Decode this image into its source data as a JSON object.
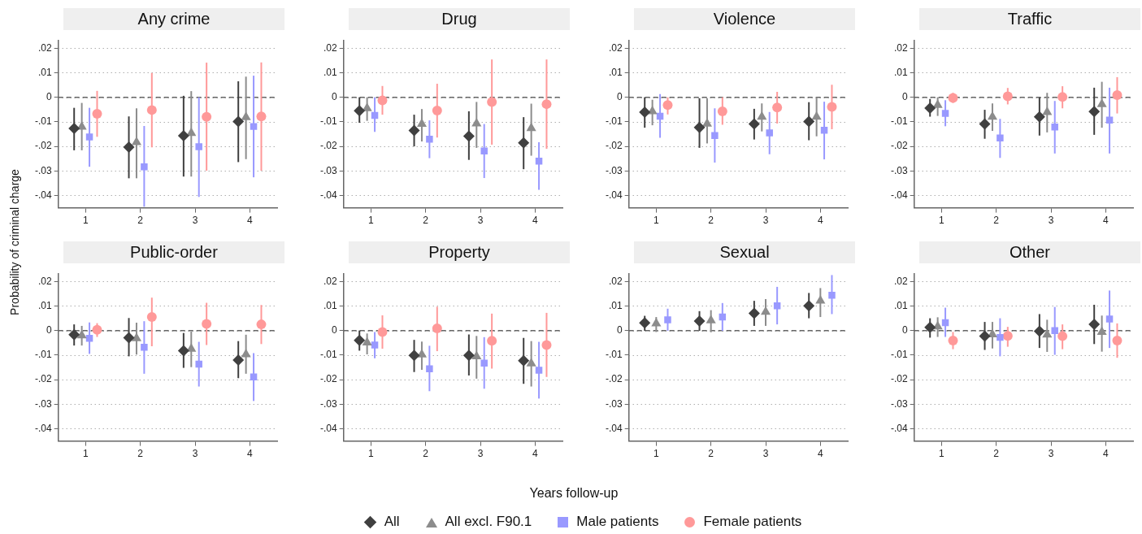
{
  "chart_data": [
    {
      "type": "scatter",
      "title": "Any crime",
      "ylabel": "Probability of criminal charge",
      "legend": "bottom",
      "categories": [
        "1",
        "2",
        "3",
        "4"
      ],
      "ylim": [
        -0.045,
        0.023
      ],
      "yticks": [
        {
          "value": 0.02,
          "label": ".02"
        },
        {
          "value": 0.01,
          "label": ".01"
        },
        {
          "value": 0,
          "label": "0"
        },
        {
          "value": -0.01,
          "label": "-.01"
        },
        {
          "value": -0.02,
          "label": "-.02"
        },
        {
          "value": -0.03,
          "label": "-.03"
        },
        {
          "value": -0.04,
          "label": "-.04"
        }
      ],
      "grid": "y",
      "ref_lines": [
        {
          "axis": "y",
          "value": 0,
          "line_style": "dashed",
          "color": "#666666"
        }
      ],
      "series": [
        {
          "name": "All",
          "color": "#404040",
          "marker": "diamond",
          "values": [
            -0.0127,
            -0.0203,
            -0.0157,
            -0.0099
          ],
          "errors": [
            [
              -0.0216,
              -0.0043
            ],
            [
              -0.033,
              -0.0078
            ],
            [
              -0.0323,
              0.0006
            ],
            [
              -0.0264,
              0.0065
            ]
          ]
        },
        {
          "name": "All excl. F90.1",
          "color": "#8c8c8c",
          "marker": "triangle",
          "values": [
            -0.012,
            -0.0183,
            -0.0146,
            -0.0081
          ],
          "errors": [
            [
              -0.0216,
              -0.0023
            ],
            [
              -0.033,
              -0.0045
            ],
            [
              -0.0323,
              0.0025
            ],
            [
              -0.0252,
              0.0084
            ]
          ]
        },
        {
          "name": "Male patients",
          "color": "#9999ff",
          "marker": "square",
          "values": [
            -0.0162,
            -0.0283,
            -0.0201,
            -0.0119
          ],
          "errors": [
            [
              -0.0283,
              -0.0043
            ],
            [
              -0.0446,
              -0.0117
            ],
            [
              -0.0406,
              0
            ],
            [
              -0.0326,
              0.0088
            ]
          ]
        },
        {
          "name": "Female patients",
          "color": "#ff9999",
          "marker": "circle",
          "values": [
            -0.0067,
            -0.0052,
            -0.008,
            -0.0078
          ],
          "errors": [
            [
              -0.0161,
              0.0026
            ],
            [
              -0.0204,
              0.0099
            ],
            [
              -0.0299,
              0.0141
            ],
            [
              -0.0299,
              0.0142
            ]
          ]
        }
      ]
    },
    {
      "type": "scatter",
      "title": "Drug",
      "categories": [
        "1",
        "2",
        "3",
        "4"
      ],
      "ylim": [
        -0.045,
        0.023
      ],
      "yticks": [
        {
          "value": 0.02,
          "label": ".02"
        },
        {
          "value": 0.01,
          "label": ".01"
        },
        {
          "value": 0,
          "label": "0"
        },
        {
          "value": -0.01,
          "label": "-.01"
        },
        {
          "value": -0.02,
          "label": "-.02"
        },
        {
          "value": -0.03,
          "label": "-.03"
        },
        {
          "value": -0.04,
          "label": "-.04"
        }
      ],
      "grid": "y",
      "ref_lines": [
        {
          "axis": "y",
          "value": 0,
          "line_style": "dashed",
          "color": "#666666"
        }
      ],
      "series": [
        {
          "color": "#404040",
          "marker": "diamond",
          "values": [
            -0.0055,
            -0.0135,
            -0.0158,
            -0.0186
          ],
          "errors": [
            [
              -0.0104,
              0
            ],
            [
              -0.02,
              -0.0071
            ],
            [
              -0.0255,
              -0.0057
            ],
            [
              -0.0293,
              -0.0081
            ]
          ]
        },
        {
          "color": "#8c8c8c",
          "marker": "triangle",
          "values": [
            -0.0045,
            -0.0109,
            -0.0107,
            -0.0126
          ],
          "errors": [
            [
              -0.0096,
              0
            ],
            [
              -0.018,
              -0.0048
            ],
            [
              -0.0206,
              -0.0019
            ],
            [
              -0.0238,
              -0.0026
            ]
          ]
        },
        {
          "color": "#9999ff",
          "marker": "square",
          "values": [
            -0.0074,
            -0.0171,
            -0.0219,
            -0.026
          ],
          "errors": [
            [
              -0.0141,
              0
            ],
            [
              -0.0248,
              -0.0094
            ],
            [
              -0.0329,
              -0.0109
            ],
            [
              -0.0377,
              -0.0183
            ]
          ]
        },
        {
          "color": "#ff9999",
          "marker": "circle",
          "values": [
            -0.0013,
            -0.0054,
            -0.0019,
            -0.0028
          ],
          "errors": [
            [
              -0.0071,
              0.0046
            ],
            [
              -0.0164,
              0.0055
            ],
            [
              -0.0193,
              0.0154
            ],
            [
              -0.021,
              0.0154
            ]
          ]
        }
      ]
    },
    {
      "type": "scatter",
      "title": "Violence",
      "categories": [
        "1",
        "2",
        "3",
        "4"
      ],
      "ylim": [
        -0.045,
        0.023
      ],
      "yticks": [
        {
          "value": 0.02,
          "label": ".02"
        },
        {
          "value": 0.01,
          "label": ".01"
        },
        {
          "value": 0,
          "label": "0"
        },
        {
          "value": -0.01,
          "label": "-.01"
        },
        {
          "value": -0.02,
          "label": "-.02"
        },
        {
          "value": -0.03,
          "label": "-.03"
        },
        {
          "value": -0.04,
          "label": "-.04"
        }
      ],
      "grid": "y",
      "ref_lines": [
        {
          "axis": "y",
          "value": 0,
          "line_style": "dashed",
          "color": "#666666"
        }
      ],
      "series": [
        {
          "color": "#404040",
          "marker": "diamond",
          "values": [
            -0.0061,
            -0.0123,
            -0.0109,
            -0.0099
          ],
          "errors": [
            [
              -0.0124,
              0
            ],
            [
              -0.0206,
              -0.0004
            ],
            [
              -0.0172,
              -0.0047
            ],
            [
              -0.0175,
              -0.002
            ]
          ]
        },
        {
          "color": "#8c8c8c",
          "marker": "triangle",
          "values": [
            -0.0057,
            -0.0108,
            -0.008,
            -0.008
          ],
          "errors": [
            [
              -0.0114,
              -0.001
            ],
            [
              -0.0188,
              -0.0004
            ],
            [
              -0.0139,
              -0.0025
            ],
            [
              -0.0159,
              0
            ]
          ]
        },
        {
          "color": "#9999ff",
          "marker": "square",
          "values": [
            -0.0077,
            -0.0156,
            -0.0145,
            -0.0134
          ],
          "errors": [
            [
              -0.0165,
              0.0013
            ],
            [
              -0.0266,
              -0.0045
            ],
            [
              -0.0232,
              -0.006
            ],
            [
              -0.0253,
              -0.0018
            ]
          ]
        },
        {
          "color": "#ff9999",
          "marker": "circle",
          "values": [
            -0.0032,
            -0.0057,
            -0.0042,
            -0.0039
          ],
          "errors": [
            [
              -0.007,
              0
            ],
            [
              -0.0112,
              0
            ],
            [
              -0.0107,
              0.0022
            ],
            [
              -0.013,
              0.0051
            ]
          ]
        }
      ]
    },
    {
      "type": "scatter",
      "title": "Traffic",
      "categories": [
        "1",
        "2",
        "3",
        "4"
      ],
      "ylim": [
        -0.045,
        0.023
      ],
      "yticks": [
        {
          "value": 0.02,
          "label": ".02"
        },
        {
          "value": 0.01,
          "label": ".01"
        },
        {
          "value": 0,
          "label": "0"
        },
        {
          "value": -0.01,
          "label": "-.01"
        },
        {
          "value": -0.02,
          "label": "-.02"
        },
        {
          "value": -0.03,
          "label": "-.03"
        },
        {
          "value": -0.04,
          "label": "-.04"
        }
      ],
      "grid": "y",
      "ref_lines": [
        {
          "axis": "y",
          "value": 0,
          "line_style": "dashed",
          "color": "#666666"
        }
      ],
      "series": [
        {
          "color": "#404040",
          "marker": "diamond",
          "values": [
            -0.0044,
            -0.0109,
            -0.008,
            -0.0058
          ],
          "errors": [
            [
              -0.0079,
              -0.0007
            ],
            [
              -0.0169,
              -0.0051
            ],
            [
              -0.0156,
              -0.0001
            ],
            [
              -0.0153,
              0.0039
            ]
          ]
        },
        {
          "color": "#8c8c8c",
          "marker": "triangle",
          "values": [
            -0.0032,
            -0.008,
            -0.0061,
            -0.0028
          ],
          "errors": [
            [
              -0.0076,
              0
            ],
            [
              -0.0137,
              -0.0025
            ],
            [
              -0.0143,
              0.0018
            ],
            [
              -0.0124,
              0.0063
            ]
          ]
        },
        {
          "color": "#9999ff",
          "marker": "square",
          "values": [
            -0.0066,
            -0.0166,
            -0.0121,
            -0.0093
          ],
          "errors": [
            [
              -0.0118,
              -0.0012
            ],
            [
              -0.0247,
              -0.0088
            ],
            [
              -0.0229,
              -0.0015
            ],
            [
              -0.0229,
              0.0039
            ]
          ]
        },
        {
          "color": "#ff9999",
          "marker": "circle",
          "values": [
            -0.0003,
            0.0004,
            0.0001,
            0.0009
          ],
          "errors": [
            [
              -0.0023,
              0.0018
            ],
            [
              -0.0029,
              0.0038
            ],
            [
              -0.0045,
              0.0045
            ],
            [
              -0.0066,
              0.0082
            ]
          ]
        }
      ]
    },
    {
      "type": "scatter",
      "title": "Public-order",
      "categories": [
        "1",
        "2",
        "3",
        "4"
      ],
      "ylim": [
        -0.045,
        0.023
      ],
      "yticks": [
        {
          "value": 0.02,
          "label": ".02"
        },
        {
          "value": 0.01,
          "label": ".01"
        },
        {
          "value": 0,
          "label": "0"
        },
        {
          "value": -0.01,
          "label": "-.01"
        },
        {
          "value": -0.02,
          "label": "-.02"
        },
        {
          "value": -0.03,
          "label": "-.03"
        },
        {
          "value": -0.04,
          "label": "-.04"
        }
      ],
      "grid": "y",
      "ref_lines": [
        {
          "axis": "y",
          "value": 0,
          "line_style": "dashed",
          "color": "#666666"
        }
      ],
      "series": [
        {
          "color": "#404040",
          "marker": "diamond",
          "values": [
            -0.0017,
            -0.0029,
            -0.0082,
            -0.012
          ],
          "errors": [
            [
              -0.0061,
              0.0025
            ],
            [
              -0.0105,
              0.0051
            ],
            [
              -0.0152,
              -0.001
            ],
            [
              -0.0194,
              -0.0043
            ]
          ]
        },
        {
          "color": "#8c8c8c",
          "marker": "triangle",
          "values": [
            -0.002,
            -0.0032,
            -0.0075,
            -0.0097
          ],
          "errors": [
            [
              -0.0061,
              0.0019
            ],
            [
              -0.0098,
              0.0032
            ],
            [
              -0.0149,
              -0.0004
            ],
            [
              -0.0176,
              -0.0017
            ]
          ]
        },
        {
          "color": "#9999ff",
          "marker": "square",
          "values": [
            -0.0032,
            -0.0068,
            -0.0137,
            -0.0189
          ],
          "errors": [
            [
              -0.0095,
              0.0033
            ],
            [
              -0.0176,
              0.0038
            ],
            [
              -0.0228,
              -0.0046
            ],
            [
              -0.0287,
              -0.0092
            ]
          ]
        },
        {
          "color": "#ff9999",
          "marker": "circle",
          "values": [
            0.0003,
            0.0055,
            0.0027,
            0.0025
          ],
          "errors": [
            [
              -0.0026,
              0.003
            ],
            [
              -0.0064,
              0.0134
            ],
            [
              -0.0059,
              0.0113
            ],
            [
              -0.0055,
              0.0104
            ]
          ]
        }
      ]
    },
    {
      "type": "scatter",
      "title": "Property",
      "categories": [
        "1",
        "2",
        "3",
        "4"
      ],
      "ylim": [
        -0.045,
        0.023
      ],
      "yticks": [
        {
          "value": 0.02,
          "label": ".02"
        },
        {
          "value": 0.01,
          "label": ".01"
        },
        {
          "value": 0,
          "label": "0"
        },
        {
          "value": -0.01,
          "label": "-.01"
        },
        {
          "value": -0.02,
          "label": "-.02"
        },
        {
          "value": -0.03,
          "label": "-.03"
        },
        {
          "value": -0.04,
          "label": "-.04"
        }
      ],
      "grid": "y",
      "ref_lines": [
        {
          "axis": "y",
          "value": 0,
          "line_style": "dashed",
          "color": "#666666"
        }
      ],
      "series": [
        {
          "color": "#404040",
          "marker": "diamond",
          "values": [
            -0.004,
            -0.0101,
            -0.0101,
            -0.0123
          ],
          "errors": [
            [
              -0.0082,
              0
            ],
            [
              -0.0169,
              -0.0038
            ],
            [
              -0.0183,
              -0.0016
            ],
            [
              -0.0217,
              -0.003
            ]
          ]
        },
        {
          "color": "#8c8c8c",
          "marker": "triangle",
          "values": [
            -0.0049,
            -0.0098,
            -0.0105,
            -0.0134
          ],
          "errors": [
            [
              -0.0097,
              -0.0012
            ],
            [
              -0.016,
              -0.0045
            ],
            [
              -0.0196,
              -0.0022
            ],
            [
              -0.0228,
              -0.0043
            ]
          ]
        },
        {
          "color": "#9999ff",
          "marker": "square",
          "values": [
            -0.0059,
            -0.0156,
            -0.0133,
            -0.0162
          ],
          "errors": [
            [
              -0.0113,
              -0.0006
            ],
            [
              -0.0247,
              -0.0062
            ],
            [
              -0.0237,
              -0.0027
            ],
            [
              -0.0277,
              -0.0046
            ]
          ]
        },
        {
          "color": "#ff9999",
          "marker": "circle",
          "values": [
            -0.0006,
            0.0009,
            -0.0042,
            -0.0059
          ],
          "errors": [
            [
              -0.0074,
              0.0062
            ],
            [
              -0.0084,
              0.0097
            ],
            [
              -0.0155,
              0.0069
            ],
            [
              -0.0189,
              0.0072
            ]
          ]
        }
      ]
    },
    {
      "type": "scatter",
      "title": "Sexual",
      "xlabel": "Years follow-up",
      "categories": [
        "1",
        "2",
        "3",
        "4"
      ],
      "ylim": [
        -0.045,
        0.023
      ],
      "yticks": [
        {
          "value": 0.02,
          "label": ".02"
        },
        {
          "value": 0.01,
          "label": ".01"
        },
        {
          "value": 0,
          "label": "0"
        },
        {
          "value": -0.01,
          "label": "-.01"
        },
        {
          "value": -0.02,
          "label": "-.02"
        },
        {
          "value": -0.03,
          "label": "-.03"
        },
        {
          "value": -0.04,
          "label": "-.04"
        }
      ],
      "grid": "y",
      "ref_lines": [
        {
          "axis": "y",
          "value": 0,
          "line_style": "dashed",
          "color": "#666666"
        }
      ],
      "series": [
        {
          "color": "#404040",
          "marker": "diamond",
          "values": [
            0.0031,
            0.0039,
            0.007,
            0.0101
          ],
          "errors": [
            [
              -0.0001,
              0.006
            ],
            [
              -0.0001,
              0.0079
            ],
            [
              0.0019,
              0.0121
            ],
            [
              0.005,
              0.0153
            ]
          ]
        },
        {
          "color": "#8c8c8c",
          "marker": "triangle",
          "values": [
            0.0029,
            0.0041,
            0.0076,
            0.0121
          ],
          "errors": [
            [
              -0.0006,
              0.0055
            ],
            [
              -0.0007,
              0.0083
            ],
            [
              0.0019,
              0.0128
            ],
            [
              0.0055,
              0.0173
            ]
          ]
        },
        {
          "color": "#9999ff",
          "marker": "square",
          "values": [
            0.0044,
            0.0055,
            0.0101,
            0.0144
          ],
          "errors": [
            [
              -0.0001,
              0.0089
            ],
            [
              -0.0001,
              0.0112
            ],
            [
              0.0025,
              0.0178
            ],
            [
              0.0067,
              0.0226
            ]
          ]
        }
      ]
    },
    {
      "type": "scatter",
      "title": "Other",
      "categories": [
        "1",
        "2",
        "3",
        "4"
      ],
      "ylim": [
        -0.045,
        0.023
      ],
      "yticks": [
        {
          "value": 0.02,
          "label": ".02"
        },
        {
          "value": 0.01,
          "label": ".01"
        },
        {
          "value": 0,
          "label": "0"
        },
        {
          "value": -0.01,
          "label": "-.01"
        },
        {
          "value": -0.02,
          "label": "-.02"
        },
        {
          "value": -0.03,
          "label": "-.03"
        },
        {
          "value": -0.04,
          "label": "-.04"
        }
      ],
      "grid": "y",
      "ref_lines": [
        {
          "axis": "y",
          "value": 0,
          "line_style": "dashed",
          "color": "#666666"
        }
      ],
      "series": [
        {
          "color": "#404040",
          "marker": "diamond",
          "values": [
            0.0013,
            -0.0023,
            -0.0003,
            0.0025
          ],
          "errors": [
            [
              -0.0029,
              0.005
            ],
            [
              -0.0079,
              0.0035
            ],
            [
              -0.0071,
              0.0067
            ],
            [
              -0.0055,
              0.0105
            ]
          ]
        },
        {
          "color": "#8c8c8c",
          "marker": "triangle",
          "values": [
            0.0016,
            -0.0016,
            -0.0017,
            -0.0006
          ],
          "errors": [
            [
              -0.0026,
              0.0054
            ],
            [
              -0.0073,
              0.0035
            ],
            [
              -0.0087,
              0.0044
            ],
            [
              -0.0086,
              0.0061
            ]
          ]
        },
        {
          "color": "#9999ff",
          "marker": "square",
          "values": [
            0.0032,
            -0.0028,
            0,
            0.0047
          ],
          "errors": [
            [
              -0.0026,
              0.0093
            ],
            [
              -0.0105,
              0.005
            ],
            [
              -0.0099,
              0.0096
            ],
            [
              -0.0071,
              0.0163
            ]
          ]
        },
        {
          "color": "#ff9999",
          "marker": "circle",
          "values": [
            -0.0041,
            -0.0022,
            -0.0023,
            -0.0041
          ],
          "errors": [
            [
              -0.0076,
              -0.0006
            ],
            [
              -0.0066,
              0.0015
            ],
            [
              -0.0076,
              0.0025
            ],
            [
              -0.0111,
              0.0029
            ]
          ]
        }
      ]
    }
  ]
}
